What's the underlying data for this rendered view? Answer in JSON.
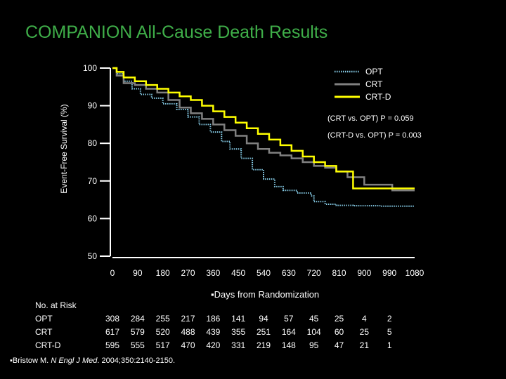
{
  "title": "COMPANION All-Cause Death Results",
  "chart_data": {
    "type": "line",
    "title": "COMPANION All-Cause Death Results",
    "ylabel": "Event-Free Survival (%)",
    "xlabel": "Days from Randomization",
    "xlim": [
      0,
      1080
    ],
    "ylim": [
      50,
      100
    ],
    "x_ticks": [
      0,
      90,
      180,
      270,
      360,
      450,
      540,
      630,
      720,
      810,
      900,
      990,
      1080
    ],
    "y_ticks": [
      50,
      60,
      70,
      80,
      90,
      100
    ],
    "legend": {
      "placement": "top-right",
      "entries": [
        "OPT",
        "CRT",
        "CRT-D"
      ]
    },
    "annotations": [
      "(CRT vs. OPT) P = 0.059",
      "(CRT-D vs. OPT) P = 0.003"
    ],
    "series": [
      {
        "name": "OPT",
        "color": "#87cde8",
        "style": "dotted",
        "x": [
          0,
          15,
          40,
          70,
          100,
          140,
          180,
          230,
          270,
          310,
          350,
          390,
          420,
          460,
          500,
          540,
          580,
          610,
          660,
          710,
          720,
          760,
          800,
          860,
          960,
          1080
        ],
        "y": [
          100,
          98.5,
          96.5,
          94.5,
          93,
          92,
          90.5,
          89,
          87,
          85,
          83,
          80.5,
          78.5,
          76,
          73,
          70.5,
          68.5,
          67.5,
          66.8,
          66,
          64.5,
          63.8,
          63.5,
          63.4,
          63.3,
          63.3
        ]
      },
      {
        "name": "CRT",
        "color": "#808080",
        "style": "solid",
        "x": [
          0,
          15,
          40,
          80,
          120,
          160,
          200,
          240,
          280,
          320,
          360,
          400,
          440,
          480,
          520,
          560,
          600,
          640,
          680,
          720,
          760,
          800,
          840,
          900,
          1000,
          1080
        ],
        "y": [
          100,
          98,
          96,
          95.5,
          94.5,
          93.5,
          91.5,
          89.5,
          88,
          86.5,
          85,
          83.5,
          82,
          80,
          78.5,
          77.5,
          76.8,
          76,
          75,
          74,
          73.5,
          72.5,
          71,
          69,
          67.5,
          67.5
        ]
      },
      {
        "name": "CRT-D",
        "color": "#ffff00",
        "style": "solid",
        "x": [
          0,
          15,
          40,
          80,
          120,
          160,
          200,
          240,
          280,
          320,
          360,
          400,
          440,
          480,
          520,
          560,
          600,
          640,
          680,
          720,
          760,
          800,
          860,
          960,
          1080
        ],
        "y": [
          100,
          99,
          97.5,
          96.5,
          95.5,
          94.5,
          93.5,
          92.5,
          91.5,
          90,
          88.5,
          87,
          85.5,
          84,
          82.5,
          81,
          79.5,
          78,
          76.5,
          75,
          74,
          72.5,
          68,
          68,
          68
        ]
      }
    ]
  },
  "risk_table": {
    "header": "No. at Risk",
    "columns_days": [
      0,
      90,
      180,
      270,
      360,
      450,
      540,
      630,
      720,
      810,
      900,
      990
    ],
    "rows": [
      {
        "label": "OPT",
        "values": [
          "308",
          "284",
          "255",
          "217",
          "186",
          "141",
          "94",
          "57",
          "45",
          "25",
          "4",
          "2"
        ]
      },
      {
        "label": "CRT",
        "values": [
          "617",
          "579",
          "520",
          "488",
          "439",
          "355",
          "251",
          "164",
          "104",
          "60",
          "25",
          "5"
        ]
      },
      {
        "label": "CRT-D",
        "values": [
          "595",
          "555",
          "517",
          "470",
          "420",
          "331",
          "219",
          "148",
          "95",
          "47",
          "21",
          "1"
        ]
      }
    ]
  },
  "citation": {
    "prefix": "Bristow M. ",
    "journal": "N Engl J Med",
    "suffix": ". 2004;350:2140-2150."
  }
}
